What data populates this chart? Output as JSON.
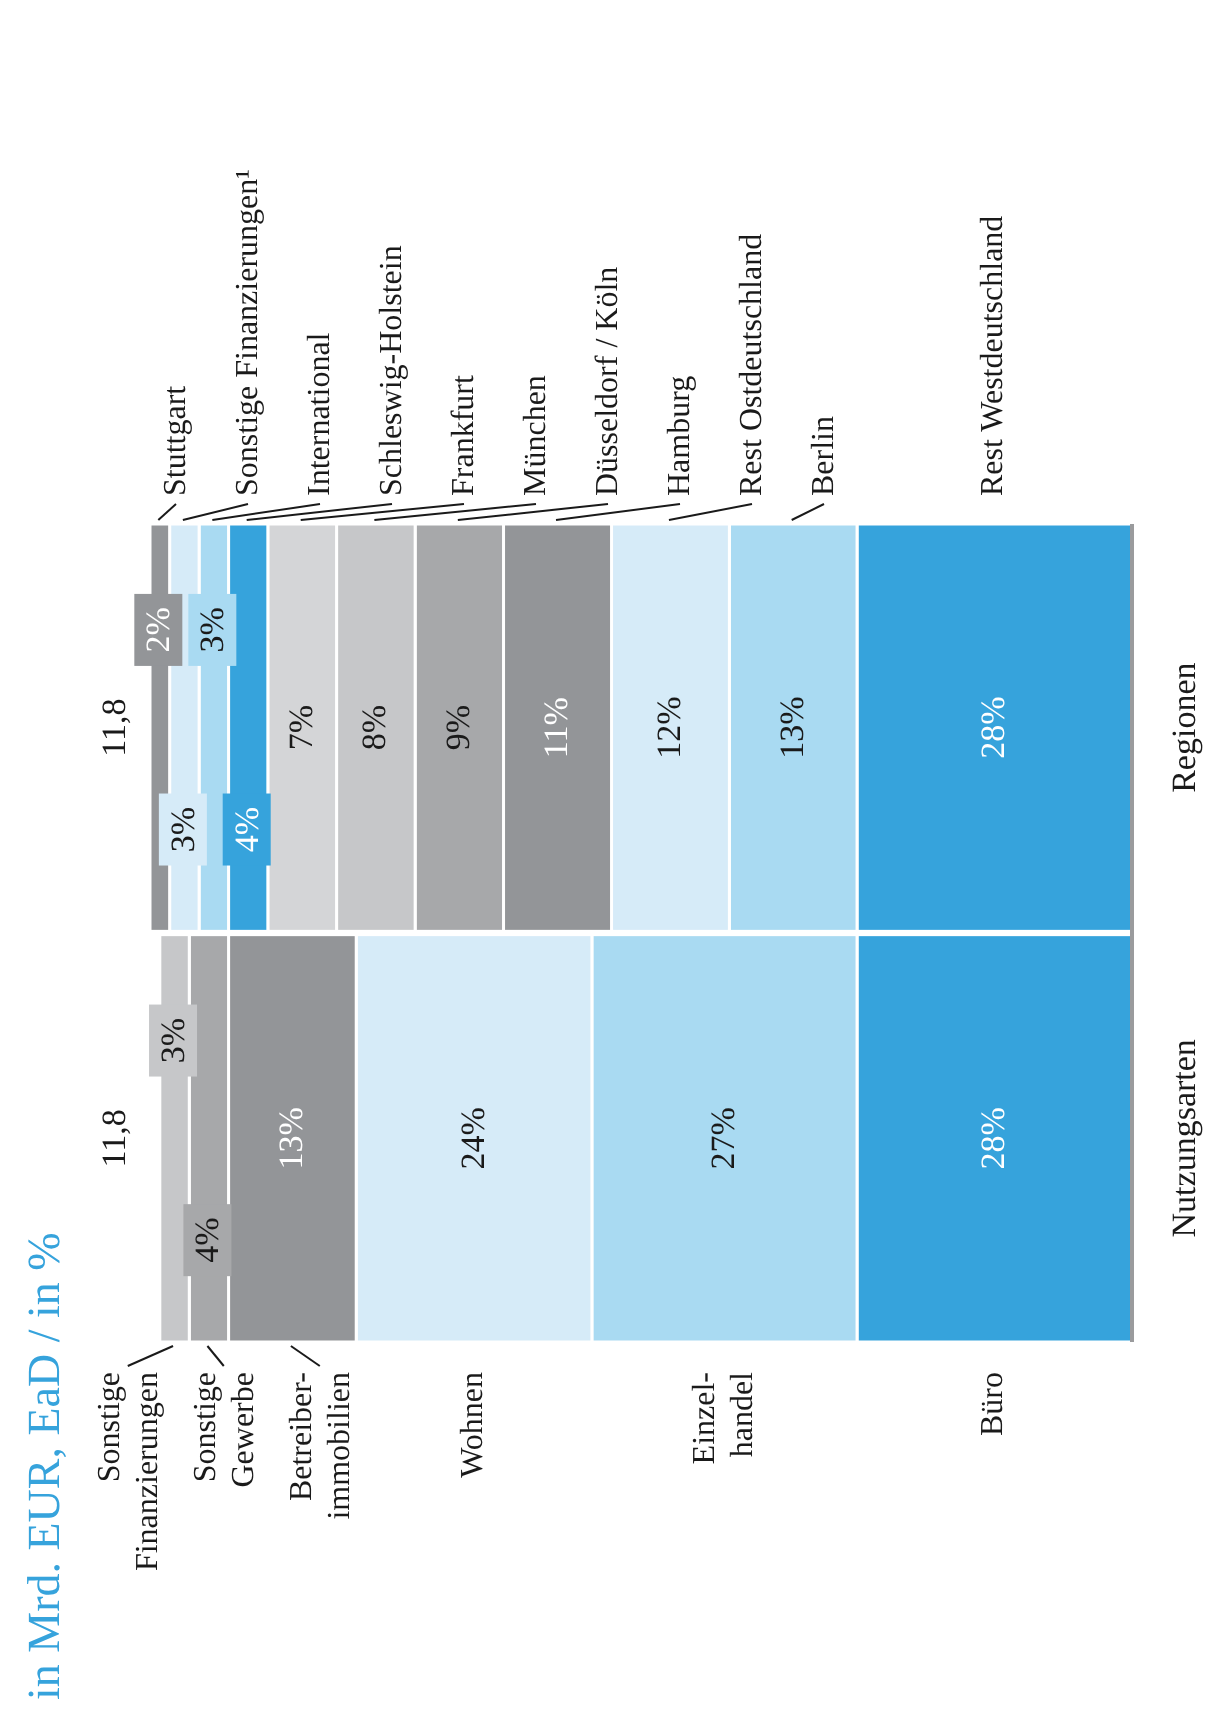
{
  "chart_data": {
    "type": "bar",
    "orientation": "horizontal",
    "stacked": true,
    "title": "in Mrd. EUR, EaD / in %",
    "categories": [
      "Regionen",
      "Nutzungsarten"
    ],
    "annotations": [
      "11,8",
      "11,8"
    ],
    "series": [
      {
        "name": "Büro",
        "color": "#36a3dc",
        "values": [
          null,
          28
        ],
        "value_labels": [
          null,
          "28%"
        ]
      },
      {
        "name": "Einzel-handel",
        "color": "#a9daf2",
        "values": [
          null,
          27
        ],
        "value_labels": [
          null,
          "27%"
        ]
      },
      {
        "name": "Wohnen",
        "color": "#d6ebf8",
        "values": [
          null,
          24
        ],
        "value_labels": [
          null,
          "24%"
        ]
      },
      {
        "name": "Betreiber-immobilien",
        "color": "#939598",
        "values": [
          null,
          13
        ],
        "value_labels": [
          null,
          "13%"
        ]
      },
      {
        "name": "Sonstige Gewerbe",
        "color": "#a7a8aa",
        "values": [
          null,
          4
        ],
        "value_labels": [
          null,
          "4%"
        ]
      },
      {
        "name": "Sonstige Finanzierungen",
        "color": "#c6c7c9",
        "values": [
          null,
          3
        ],
        "value_labels": [
          null,
          "3%"
        ]
      },
      {
        "name": "Rest Westdeutschland",
        "color": "#36a3dc",
        "values": [
          28,
          null
        ],
        "value_labels": [
          "28%",
          null
        ]
      },
      {
        "name": "Berlin",
        "color": "#a9daf2",
        "values": [
          13,
          null
        ],
        "value_labels": [
          "13%",
          null
        ]
      },
      {
        "name": "Rest Ostdeutschland",
        "color": "#d6ebf8",
        "values": [
          12,
          null
        ],
        "value_labels": [
          "12%",
          null
        ]
      },
      {
        "name": "Hamburg",
        "color": "#939598",
        "values": [
          11,
          null
        ],
        "value_labels": [
          "11%",
          null
        ]
      },
      {
        "name": "Düsseldorf / Köln",
        "color": "#a7a8aa",
        "values": [
          9,
          null
        ],
        "value_labels": [
          "9%",
          null
        ]
      },
      {
        "name": "München",
        "color": "#c6c7c9",
        "values": [
          8,
          null
        ],
        "value_labels": [
          "8%",
          null
        ]
      },
      {
        "name": "Frankfurt",
        "color": "#d4d5d7",
        "values": [
          7,
          null
        ],
        "value_labels": [
          "7%",
          null
        ]
      },
      {
        "name": "Schleswig-Holstein",
        "color": "#36a3dc",
        "values": [
          4,
          null
        ],
        "value_labels": [
          "4%",
          null
        ]
      },
      {
        "name": "International",
        "color": "#a9daf2",
        "values": [
          3,
          null
        ],
        "value_labels": [
          "3%",
          null
        ]
      },
      {
        "name": "Sonstige Finanzierungen¹",
        "color": "#d6ebf8",
        "values": [
          3,
          null
        ],
        "value_labels": [
          "3%",
          null
        ]
      },
      {
        "name": "Stuttgart",
        "color": "#939598",
        "values": [
          2,
          null
        ],
        "value_labels": [
          "2%",
          null
        ]
      }
    ]
  }
}
